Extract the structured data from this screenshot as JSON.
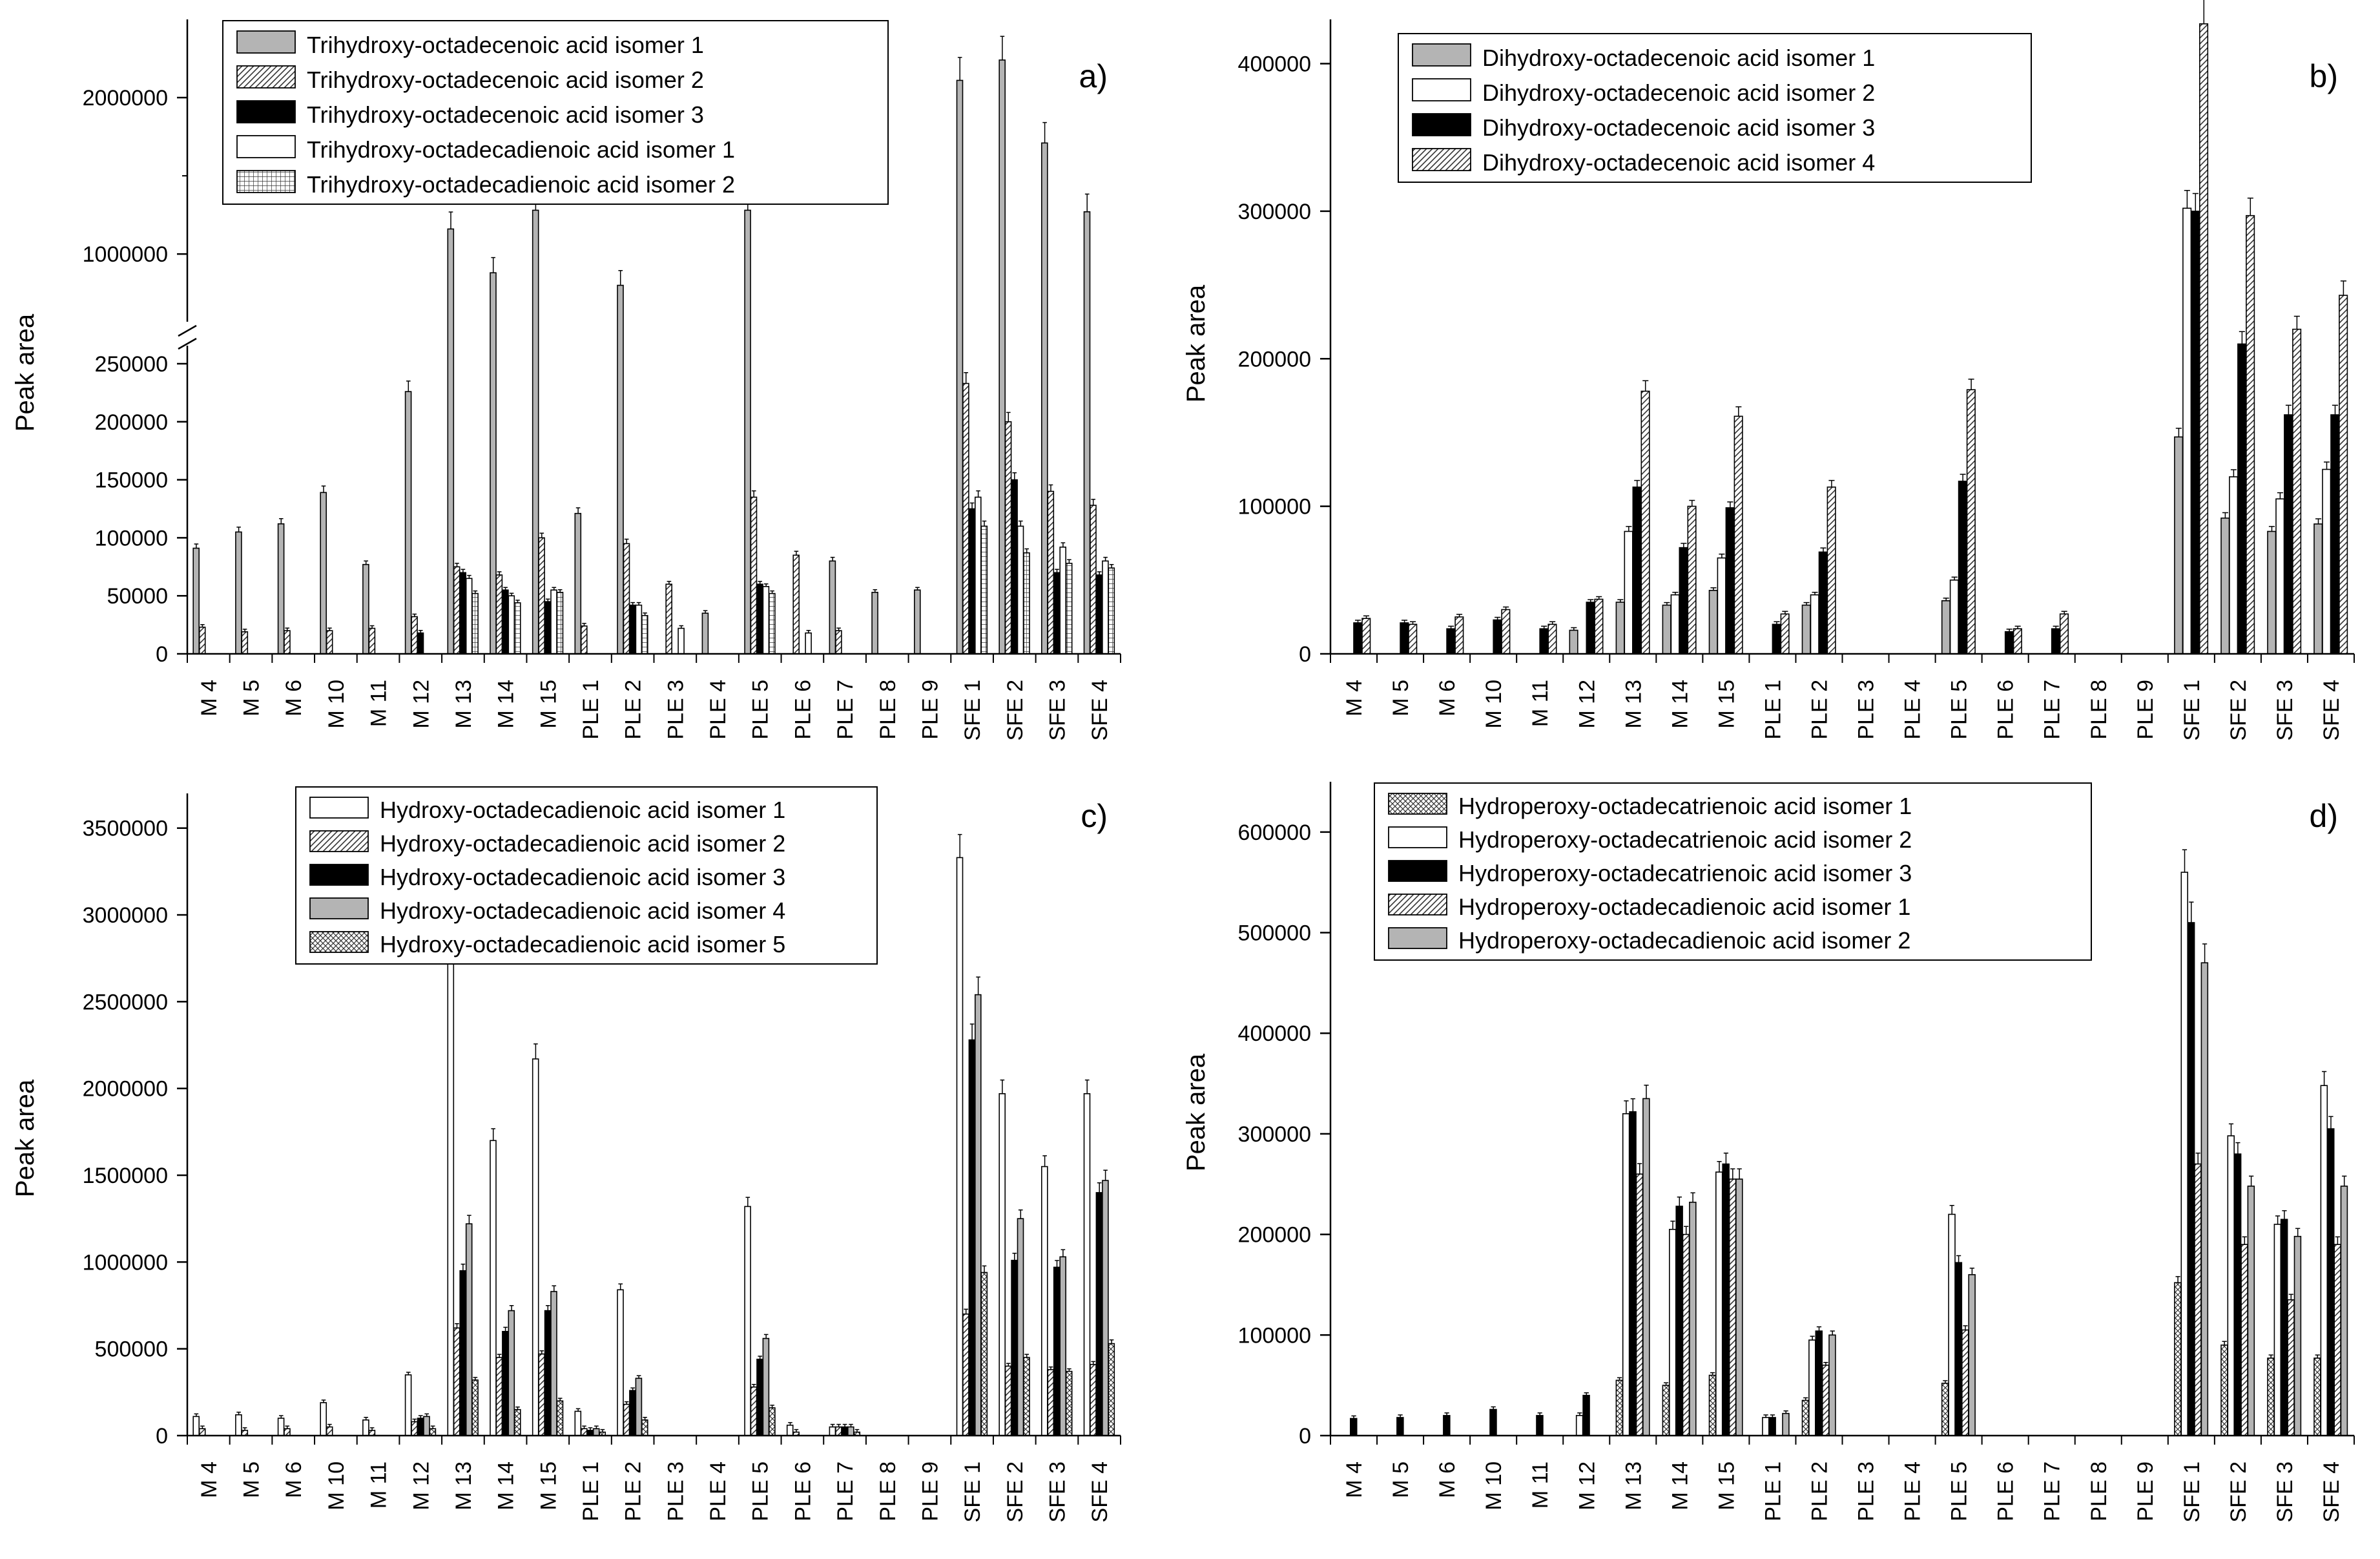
{
  "chart_data": [
    {
      "type": "bar",
      "panel_label": "a)",
      "ylabel": "Peak area",
      "xlabel": "",
      "broken_axis": true,
      "lower_range": [
        0,
        260000
      ],
      "upper_range": [
        600000,
        2500000
      ],
      "yticks_lower": [
        0,
        50000,
        100000,
        150000,
        200000,
        250000
      ],
      "yticks_upper": [
        1000000,
        2000000
      ],
      "ytick_labels_lower": [
        "0",
        "50000",
        "100000",
        "150000",
        "200000",
        "250000"
      ],
      "ytick_labels_upper": [
        "1000000",
        "2000000"
      ],
      "categories": [
        "M 4",
        "M 5",
        "M 6",
        "M 10",
        "M 11",
        "M 12",
        "M 13",
        "M 14",
        "M 15",
        "PLE 1",
        "PLE 2",
        "PLE 3",
        "PLE 4",
        "PLE 5",
        "PLE 6",
        "PLE 7",
        "PLE 8",
        "PLE 9",
        "SFE 1",
        "SFE 2",
        "SFE 3",
        "SFE 4"
      ],
      "series": [
        {
          "name": "Trihydroxy-octadecenoic acid isomer 1",
          "pattern": "gray",
          "values": [
            91000,
            105000,
            112000,
            139000,
            77000,
            226000,
            1160000,
            880000,
            1280000,
            121000,
            800000,
            0,
            35000,
            1280000,
            0,
            80000,
            53000,
            55000,
            2110000,
            2240000,
            1710000,
            1270000
          ]
        },
        {
          "name": "Trihydroxy-octadecenoic acid isomer 2",
          "pattern": "diag",
          "values": [
            23000,
            19000,
            20000,
            20000,
            22000,
            32000,
            75000,
            68000,
            100000,
            24000,
            95000,
            60000,
            0,
            135000,
            85000,
            20000,
            0,
            0,
            233000,
            200000,
            140000,
            128000
          ]
        },
        {
          "name": "Trihydroxy-octadecenoic acid isomer 3",
          "pattern": "black",
          "values": [
            0,
            0,
            0,
            0,
            0,
            18000,
            70000,
            55000,
            45000,
            0,
            42000,
            0,
            0,
            60000,
            0,
            0,
            0,
            0,
            125000,
            150000,
            70000,
            68000
          ]
        },
        {
          "name": "Trihydroxy-octadecadienoic acid isomer 1",
          "pattern": "white",
          "values": [
            0,
            0,
            0,
            0,
            0,
            0,
            65000,
            50000,
            55000,
            0,
            42000,
            22000,
            0,
            58000,
            18000,
            0,
            0,
            0,
            135000,
            110000,
            92000,
            80000
          ]
        },
        {
          "name": "Trihydroxy-octadecadienoic acid isomer 2",
          "pattern": "grid",
          "values": [
            0,
            0,
            0,
            0,
            0,
            0,
            52000,
            44000,
            53000,
            0,
            33000,
            0,
            0,
            52000,
            0,
            0,
            0,
            0,
            110000,
            87000,
            78000,
            74000
          ]
        }
      ]
    },
    {
      "type": "bar",
      "panel_label": "b)",
      "ylabel": "Peak area",
      "xlabel": "",
      "ylim": [
        0,
        430000
      ],
      "yticks": [
        0,
        100000,
        200000,
        300000,
        400000
      ],
      "ytick_labels": [
        "0",
        "100000",
        "200000",
        "300000",
        "400000"
      ],
      "categories": [
        "M 4",
        "M 5",
        "M 6",
        "M 10",
        "M 11",
        "M 12",
        "M 13",
        "M 14",
        "M 15",
        "PLE 1",
        "PLE 2",
        "PLE 3",
        "PLE 4",
        "PLE 5",
        "PLE 6",
        "PLE 7",
        "PLE 8",
        "PLE 9",
        "SFE 1",
        "SFE 2",
        "SFE 3",
        "SFE 4"
      ],
      "series": [
        {
          "name": "Dihydroxy-octadecenoic acid isomer 1",
          "pattern": "gray",
          "values": [
            0,
            0,
            0,
            0,
            0,
            16000,
            35000,
            33000,
            43000,
            0,
            33000,
            0,
            0,
            36000,
            0,
            0,
            0,
            0,
            147000,
            92000,
            83000,
            88000
          ]
        },
        {
          "name": "Dihydroxy-octadecenoic acid isomer 2",
          "pattern": "white",
          "values": [
            0,
            0,
            0,
            0,
            0,
            0,
            83000,
            40000,
            65000,
            0,
            40000,
            0,
            0,
            50000,
            0,
            0,
            0,
            0,
            302000,
            120000,
            105000,
            125000
          ]
        },
        {
          "name": "Dihydroxy-octadecenoic acid isomer 3",
          "pattern": "black",
          "values": [
            21000,
            21000,
            17000,
            23000,
            17000,
            35000,
            113000,
            72000,
            99000,
            20000,
            69000,
            0,
            0,
            117000,
            15000,
            17000,
            0,
            0,
            300000,
            210000,
            162000,
            162000
          ]
        },
        {
          "name": "Dihydroxy-octadecenoic acid isomer 4",
          "pattern": "diag",
          "values": [
            24000,
            20000,
            25000,
            30000,
            20000,
            37000,
            178000,
            100000,
            161000,
            27000,
            113000,
            0,
            0,
            179000,
            17000,
            27000,
            0,
            0,
            427000,
            297000,
            220000,
            243000
          ]
        }
      ]
    },
    {
      "type": "bar",
      "panel_label": "c)",
      "ylabel": "Peak area",
      "xlabel": "",
      "ylim": [
        0,
        3700000
      ],
      "yticks": [
        0,
        500000,
        1000000,
        1500000,
        2000000,
        2500000,
        3000000,
        3500000
      ],
      "ytick_labels": [
        "0",
        "500000",
        "1000000",
        "1500000",
        "2000000",
        "2500000",
        "3000000",
        "3500000"
      ],
      "categories": [
        "M 4",
        "M 5",
        "M 6",
        "M 10",
        "M 11",
        "M 12",
        "M 13",
        "M 14",
        "M 15",
        "PLE 1",
        "PLE 2",
        "PLE 3",
        "PLE 4",
        "PLE 5",
        "PLE 6",
        "PLE 7",
        "PLE 8",
        "PLE 9",
        "SFE 1",
        "SFE 2",
        "SFE 3",
        "SFE 4"
      ],
      "series": [
        {
          "name": "Hydroxy-octadecadienoic acid isomer 1",
          "pattern": "white",
          "values": [
            110000,
            120000,
            100000,
            190000,
            90000,
            350000,
            2730000,
            1700000,
            2170000,
            140000,
            840000,
            0,
            0,
            1320000,
            60000,
            50000,
            0,
            0,
            3330000,
            1970000,
            1550000,
            1970000
          ]
        },
        {
          "name": "Hydroxy-octadecadienoic acid isomer 2",
          "pattern": "diag",
          "values": [
            40000,
            30000,
            40000,
            50000,
            30000,
            80000,
            620000,
            450000,
            470000,
            40000,
            180000,
            0,
            0,
            280000,
            20000,
            50000,
            0,
            0,
            700000,
            400000,
            380000,
            410000
          ]
        },
        {
          "name": "Hydroxy-octadecadienoic acid isomer 3",
          "pattern": "black",
          "values": [
            0,
            0,
            0,
            0,
            0,
            100000,
            950000,
            600000,
            720000,
            30000,
            260000,
            0,
            0,
            440000,
            0,
            50000,
            0,
            0,
            2280000,
            1010000,
            970000,
            1400000
          ]
        },
        {
          "name": "Hydroxy-octadecadienoic acid isomer 4",
          "pattern": "gray",
          "values": [
            0,
            0,
            0,
            0,
            0,
            110000,
            1220000,
            720000,
            830000,
            40000,
            330000,
            0,
            0,
            560000,
            0,
            50000,
            0,
            0,
            2540000,
            1250000,
            1030000,
            1470000
          ]
        },
        {
          "name": "Hydroxy-octadecadienoic acid isomer 5",
          "pattern": "cross",
          "values": [
            0,
            0,
            0,
            0,
            0,
            40000,
            320000,
            150000,
            200000,
            20000,
            90000,
            0,
            0,
            160000,
            0,
            20000,
            0,
            0,
            940000,
            450000,
            370000,
            530000
          ]
        }
      ]
    },
    {
      "type": "bar",
      "panel_label": "d)",
      "ylabel": "Peak area",
      "xlabel": "",
      "ylim": [
        0,
        650000
      ],
      "yticks": [
        0,
        100000,
        200000,
        300000,
        400000,
        500000,
        600000
      ],
      "ytick_labels": [
        "0",
        "100000",
        "200000",
        "300000",
        "400000",
        "500000",
        "600000"
      ],
      "categories": [
        "M 4",
        "M 5",
        "M 6",
        "M 10",
        "M 11",
        "M 12",
        "M 13",
        "M 14",
        "M 15",
        "PLE 1",
        "PLE 2",
        "PLE 3",
        "PLE 4",
        "PLE 5",
        "PLE 6",
        "PLE 7",
        "PLE 8",
        "PLE 9",
        "SFE 1",
        "SFE 2",
        "SFE 3",
        "SFE 4"
      ],
      "series": [
        {
          "name": "Hydroperoxy-octadecatrienoic acid isomer 1",
          "pattern": "cross",
          "values": [
            0,
            0,
            0,
            0,
            0,
            0,
            55000,
            50000,
            60000,
            0,
            35000,
            0,
            0,
            52000,
            0,
            0,
            0,
            0,
            152000,
            90000,
            77000,
            77000
          ]
        },
        {
          "name": "Hydroperoxy-octadecatrienoic acid isomer 2",
          "pattern": "white",
          "values": [
            0,
            0,
            0,
            0,
            0,
            20000,
            320000,
            205000,
            262000,
            18000,
            95000,
            0,
            0,
            220000,
            0,
            0,
            0,
            0,
            560000,
            298000,
            210000,
            348000
          ]
        },
        {
          "name": "Hydroperoxy-octadecatrienoic acid isomer 3",
          "pattern": "black",
          "values": [
            17000,
            18000,
            20000,
            26000,
            20000,
            40000,
            322000,
            228000,
            270000,
            18000,
            104000,
            0,
            0,
            172000,
            0,
            0,
            0,
            0,
            510000,
            280000,
            215000,
            305000
          ]
        },
        {
          "name": "Hydroperoxy-octadecadienoic acid isomer 1",
          "pattern": "diag",
          "values": [
            0,
            0,
            0,
            0,
            0,
            0,
            260000,
            200000,
            255000,
            0,
            70000,
            0,
            0,
            105000,
            0,
            0,
            0,
            0,
            270000,
            190000,
            135000,
            190000
          ]
        },
        {
          "name": "Hydroperoxy-octadecadienoic acid isomer 2",
          "pattern": "gray",
          "values": [
            0,
            0,
            0,
            0,
            0,
            0,
            335000,
            232000,
            255000,
            22000,
            100000,
            0,
            0,
            160000,
            0,
            0,
            0,
            0,
            470000,
            248000,
            198000,
            248000
          ]
        }
      ]
    }
  ]
}
